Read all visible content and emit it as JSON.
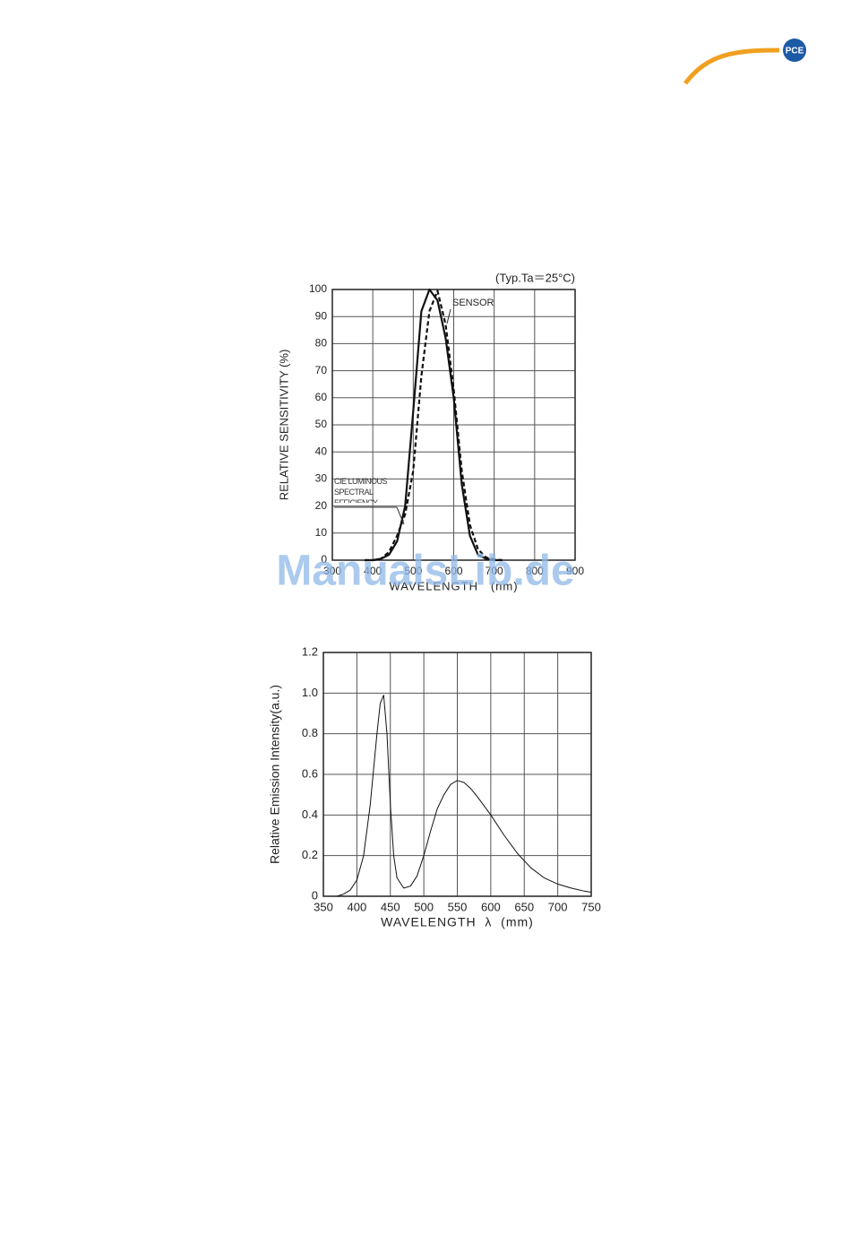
{
  "header": {
    "logo": "PCE"
  },
  "watermark": "ManualsLib.de",
  "chart_data": [
    {
      "type": "line",
      "annotation": "(Typ.Ta＝25°C)",
      "x_label": "WAVELENGTH   (nm)",
      "y_label": "RELATIVE SENSITIVITY (%)",
      "x": [
        380,
        400,
        420,
        440,
        460,
        480,
        500,
        520,
        540,
        560,
        580,
        600,
        620,
        640,
        660,
        680,
        700,
        720
      ],
      "series": [
        {
          "name": "SENSOR",
          "color": "#111",
          "style": "solid",
          "values": [
            0,
            0,
            0.5,
            2,
            7,
            20,
            55,
            92,
            100,
            96,
            82,
            60,
            28,
            9,
            2,
            0.5,
            0,
            0
          ]
        },
        {
          "name": "CIE LUMINOUS SPECTRAL EFFICIENCY",
          "color": "#111",
          "style": "dashed",
          "values": [
            0,
            0,
            0.5,
            3,
            9,
            17,
            33,
            68,
            92,
            99.5,
            87,
            63,
            33,
            13,
            4,
            1,
            0.3,
            0
          ]
        }
      ],
      "xlim": [
        300,
        900
      ],
      "xticks": [
        300,
        400,
        500,
        600,
        700,
        800,
        900
      ],
      "ylim": [
        0,
        100
      ],
      "yticks": [
        0,
        10,
        20,
        30,
        40,
        50,
        60,
        70,
        80,
        90,
        100
      ],
      "grid": true
    },
    {
      "type": "line",
      "x_label": "WAVELENGTH  λ  (mm)",
      "y_label": "Relative Emission Intensity(a.u.)",
      "x": [
        370,
        380,
        390,
        400,
        410,
        420,
        430,
        435,
        440,
        445,
        450,
        455,
        460,
        470,
        480,
        490,
        500,
        510,
        520,
        530,
        540,
        550,
        560,
        570,
        580,
        600,
        620,
        640,
        660,
        680,
        700,
        720,
        740,
        750
      ],
      "series": [
        {
          "color": "#111",
          "style": "solid",
          "values": [
            0,
            0.01,
            0.03,
            0.08,
            0.2,
            0.45,
            0.8,
            0.95,
            0.99,
            0.8,
            0.45,
            0.2,
            0.09,
            0.04,
            0.05,
            0.1,
            0.2,
            0.32,
            0.43,
            0.5,
            0.55,
            0.57,
            0.56,
            0.53,
            0.49,
            0.4,
            0.3,
            0.21,
            0.14,
            0.09,
            0.06,
            0.04,
            0.025,
            0.02
          ]
        }
      ],
      "xlim": [
        350,
        750
      ],
      "xticks": [
        350,
        400,
        450,
        500,
        550,
        600,
        650,
        700,
        750
      ],
      "ylim": [
        0,
        1.2
      ],
      "yticks": [
        0,
        0.2,
        0.4,
        0.6,
        0.8,
        {
          "value": 1,
          "label": "1.0"
        },
        1.2
      ],
      "grid": true
    }
  ]
}
